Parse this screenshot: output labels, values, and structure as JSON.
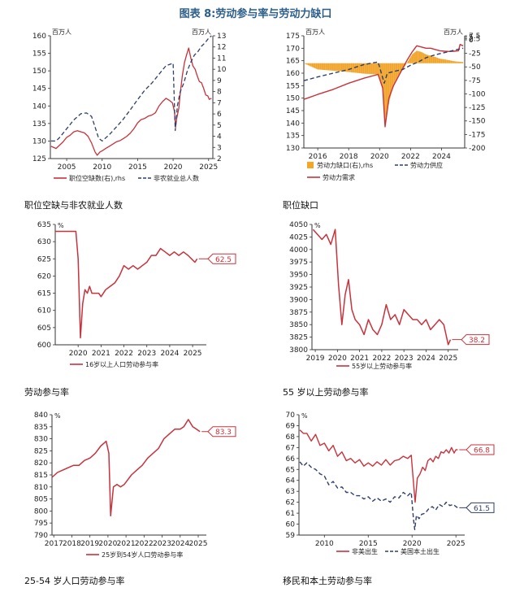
{
  "page": {
    "title": "图表 8:劳动参与率与劳动力缺口"
  },
  "chart_data": [
    {
      "id": "c1",
      "type": "line",
      "unit_left": "百万人",
      "unit_right": "百万人",
      "ylim": [
        125,
        160
      ],
      "yticks": [
        125,
        130,
        135,
        140,
        145,
        150,
        155,
        160
      ],
      "y2lim": [
        2,
        13
      ],
      "y2ticks": [
        2,
        3,
        4,
        5,
        6,
        7,
        8,
        9,
        10,
        11,
        12,
        13
      ],
      "xlim": [
        2002.7,
        2025.6
      ],
      "xticks": [
        2005,
        2010,
        2015,
        2020,
        2025
      ],
      "series": [
        {
          "name": "职位空缺数(右),rhs",
          "color": "#c8323c",
          "axis": "right",
          "style": "solid",
          "x": [
            2002.8,
            2003.5,
            2004,
            2004.5,
            2005,
            2005.5,
            2006,
            2006.5,
            2007,
            2007.5,
            2008,
            2008.5,
            2009,
            2009.3,
            2009.7,
            2010,
            2010.5,
            2011,
            2011.5,
            2012,
            2012.5,
            2013,
            2013.5,
            2014,
            2014.5,
            2015,
            2015.5,
            2016,
            2016.5,
            2017,
            2017.5,
            2018,
            2018.5,
            2019,
            2019.5,
            2019.9,
            2020.2,
            2020.35,
            2020.5,
            2020.8,
            2021,
            2021.3,
            2021.6,
            2021.9,
            2022.2,
            2022.5,
            2022.8,
            2023.1,
            2023.4,
            2023.7,
            2024,
            2024.3,
            2024.6,
            2024.9,
            2025.1,
            2025.4
          ],
          "y": [
            3.1,
            2.9,
            3.2,
            3.5,
            3.9,
            4.1,
            4.4,
            4.5,
            4.4,
            4.3,
            4.0,
            3.4,
            2.6,
            2.3,
            2.6,
            2.7,
            2.9,
            3.1,
            3.3,
            3.5,
            3.6,
            3.8,
            4.0,
            4.3,
            4.7,
            5.2,
            5.5,
            5.6,
            5.8,
            5.9,
            6.1,
            6.7,
            7.1,
            7.4,
            7.2,
            7.0,
            6.2,
            4.8,
            5.6,
            6.5,
            7.8,
            9.4,
            10.6,
            11.3,
            11.9,
            11.0,
            10.3,
            10.0,
            9.4,
            8.9,
            8.8,
            8.3,
            7.7,
            7.6,
            7.3,
            7.4
          ]
        },
        {
          "name": "非农就业总人数",
          "color": "#2e3f6b",
          "axis": "left",
          "style": "dashed",
          "x": [
            2002.8,
            2003.5,
            2004,
            2005,
            2006,
            2007,
            2007.8,
            2008.5,
            2009,
            2009.5,
            2010,
            2011,
            2012,
            2013,
            2014,
            2015,
            2016,
            2017,
            2018,
            2019,
            2020.0,
            2020.3,
            2020.4,
            2020.6,
            2021,
            2021.5,
            2022,
            2022.5,
            2023,
            2023.5,
            2024,
            2024.5,
            2025,
            2025.4
          ],
          "y": [
            130,
            130,
            131,
            133.5,
            136,
            137.8,
            138,
            137,
            134,
            130.8,
            130,
            131.8,
            134,
            136.3,
            139,
            141.8,
            144.5,
            146.5,
            149,
            151.5,
            152.2,
            133,
            135.2,
            140,
            144,
            146.5,
            150,
            152.5,
            154.5,
            155.5,
            157,
            158,
            159.3,
            160
          ]
        }
      ]
    },
    {
      "id": "c2",
      "type": "bar+line",
      "unit_left": "百万人",
      "unit_right": "百万人",
      "ylim": [
        130,
        175
      ],
      "yticks": [
        130,
        135,
        140,
        145,
        150,
        155,
        160,
        165,
        170,
        175
      ],
      "y2lim": [
        -200,
        7.5
      ],
      "y2ticks": [
        -200,
        -175,
        -150,
        -125,
        -100,
        -75,
        -50,
        -25,
        0,
        2.5,
        5,
        7.5
      ],
      "xlim": [
        2015.1,
        2025.5
      ],
      "xticks": [
        2016,
        2018,
        2020,
        2022,
        2024
      ],
      "gap": {
        "name": "劳动力缺口(右),rhs",
        "color": "#f5a623",
        "baseline": 164,
        "x": [
          2015.1,
          2016,
          2017,
          2018,
          2019,
          2019.9,
          2020.2,
          2020.35,
          2020.6,
          2020.9,
          2021.2,
          2021.5,
          2021.8,
          2022.1,
          2022.4,
          2022.7,
          2023,
          2023.3,
          2023.6,
          2023.9,
          2024.2,
          2024.5,
          2024.8,
          2025.1,
          2025.4
        ],
        "y": [
          164,
          161.5,
          161,
          160.5,
          159.8,
          159.5,
          154,
          139,
          148,
          155.5,
          159,
          161.5,
          164.5,
          167.5,
          169,
          168.5,
          167.5,
          167,
          166.5,
          165.8,
          165.5,
          165.2,
          164.8,
          164.6,
          164.5
        ]
      },
      "series": [
        {
          "name": "劳动力需求",
          "color": "#c8323c",
          "style": "solid",
          "x": [
            2015.1,
            2016,
            2017,
            2018,
            2019,
            2019.9,
            2020.2,
            2020.35,
            2020.6,
            2020.9,
            2021.2,
            2021.5,
            2021.8,
            2022.1,
            2022.4,
            2022.7,
            2023,
            2023.3,
            2023.6,
            2023.9,
            2024.2,
            2024.5,
            2024.8,
            2025.1,
            2025.2,
            2025.4
          ],
          "y": [
            149.5,
            151.5,
            153.5,
            156,
            158,
            159.5,
            154,
            138.5,
            150,
            155,
            158.5,
            162,
            165.5,
            168.5,
            171,
            170.5,
            170,
            170,
            169.5,
            169,
            168.8,
            168.7,
            168.8,
            169,
            171.5,
            171
          ]
        },
        {
          "name": "劳动力供应",
          "color": "#2e3f6b",
          "style": "dashed",
          "x": [
            2015.1,
            2016,
            2017,
            2018,
            2019,
            2019.9,
            2020.3,
            2020.5,
            2021,
            2021.5,
            2022,
            2022.5,
            2023,
            2023.5,
            2024,
            2024.5,
            2025,
            2025.4
          ],
          "y": [
            157,
            158.5,
            160,
            161.5,
            163.5,
            164.5,
            156,
            160,
            160.8,
            161.5,
            163.2,
            164.5,
            166.2,
            167.2,
            168,
            168.7,
            169.5,
            170
          ]
        }
      ]
    },
    {
      "id": "c3",
      "type": "line",
      "unit_left": "%",
      "ylim": [
        60.0,
        63.5
      ],
      "yticks": [
        60.0,
        60.5,
        61.0,
        61.5,
        62.0,
        62.5,
        63.0,
        63.5
      ],
      "tick_labels": [
        "600",
        "605",
        "610",
        "615",
        "620",
        "625",
        "630",
        "635"
      ],
      "xlim": [
        2019.0,
        2025.6
      ],
      "xticks": [
        2020,
        2021,
        2022,
        2023,
        2024,
        2025
      ],
      "last_value_label": "62.5",
      "series": [
        {
          "name": "16岁以上人口劳动参与率",
          "color": "#c8323c",
          "x": [
            2019.0,
            2019.5,
            2019.9,
            2020.0,
            2020.1,
            2020.2,
            2020.3,
            2020.4,
            2020.5,
            2020.6,
            2020.7,
            2020.8,
            2020.9,
            2021.0,
            2021.2,
            2021.4,
            2021.6,
            2021.8,
            2022.0,
            2022.2,
            2022.4,
            2022.6,
            2022.8,
            2023.0,
            2023.2,
            2023.4,
            2023.6,
            2023.8,
            2024.0,
            2024.2,
            2024.4,
            2024.6,
            2024.8,
            2024.95,
            2025.1,
            2025.2
          ],
          "y": [
            63.3,
            63.3,
            63.3,
            62.5,
            60.2,
            61.2,
            61.6,
            61.5,
            61.7,
            61.5,
            61.5,
            61.5,
            61.5,
            61.4,
            61.6,
            61.7,
            61.8,
            62.0,
            62.3,
            62.2,
            62.3,
            62.2,
            62.3,
            62.4,
            62.6,
            62.6,
            62.8,
            62.7,
            62.6,
            62.7,
            62.6,
            62.7,
            62.6,
            62.5,
            62.4,
            62.5
          ]
        }
      ]
    },
    {
      "id": "c4",
      "type": "line",
      "unit_left": "%",
      "ylim": [
        38.0,
        40.5
      ],
      "yticks": [
        38.0,
        38.25,
        38.5,
        38.75,
        39.0,
        39.25,
        39.5,
        39.75,
        40.0,
        40.25,
        40.5
      ],
      "tick_labels": [
        "3800",
        "3825",
        "3850",
        "3875",
        "3900",
        "3925",
        "3950",
        "3975",
        "4000",
        "4025",
        "4050"
      ],
      "xlim": [
        2018.85,
        2025.45
      ],
      "xticks": [
        2019,
        2020,
        2021,
        2022,
        2023,
        2024,
        2025
      ],
      "last_value_label": "38.2",
      "series": [
        {
          "name": "55岁以上劳动参与率",
          "color": "#c8323c",
          "x": [
            2018.9,
            2019.1,
            2019.3,
            2019.5,
            2019.7,
            2019.9,
            2020.05,
            2020.2,
            2020.35,
            2020.5,
            2020.65,
            2020.8,
            2021.0,
            2021.2,
            2021.4,
            2021.6,
            2021.8,
            2022.0,
            2022.2,
            2022.4,
            2022.6,
            2022.8,
            2023.0,
            2023.2,
            2023.4,
            2023.6,
            2023.8,
            2024.0,
            2024.2,
            2024.4,
            2024.6,
            2024.8,
            2024.9,
            2025.0,
            2025.1
          ],
          "y": [
            40.4,
            40.3,
            40.2,
            40.3,
            40.1,
            40.4,
            39.3,
            38.5,
            39.1,
            39.4,
            38.8,
            38.6,
            38.5,
            38.3,
            38.6,
            38.4,
            38.3,
            38.5,
            38.9,
            38.6,
            38.7,
            38.5,
            38.8,
            38.7,
            38.6,
            38.6,
            38.5,
            38.6,
            38.4,
            38.5,
            38.6,
            38.5,
            38.3,
            38.1,
            38.2
          ]
        }
      ]
    },
    {
      "id": "c5",
      "type": "line",
      "unit_left": "%",
      "ylim": [
        79.0,
        84.0
      ],
      "yticks": [
        79.0,
        79.5,
        80.0,
        80.5,
        81.0,
        81.5,
        82.0,
        82.5,
        83.0,
        83.5,
        84.0
      ],
      "tick_labels": [
        "790",
        "795",
        "800",
        "805",
        "810",
        "815",
        "820",
        "825",
        "830",
        "835",
        "840"
      ],
      "xlim": [
        2016.9,
        2025.45
      ],
      "xticks": [
        2017,
        2018,
        2019,
        2020,
        2021,
        2022,
        2023,
        2024,
        2025
      ],
      "last_value_label": "83.3",
      "series": [
        {
          "name": "25岁到54岁人口劳动参与率",
          "color": "#c8323c",
          "x": [
            2016.9,
            2017.2,
            2017.5,
            2017.8,
            2018.1,
            2018.4,
            2018.7,
            2019.0,
            2019.3,
            2019.6,
            2019.9,
            2020.05,
            2020.15,
            2020.3,
            2020.5,
            2020.7,
            2020.9,
            2021.1,
            2021.3,
            2021.6,
            2021.9,
            2022.2,
            2022.5,
            2022.8,
            2023.1,
            2023.4,
            2023.7,
            2024.0,
            2024.2,
            2024.45,
            2024.7,
            2024.9,
            2025.1
          ],
          "y": [
            81.4,
            81.6,
            81.7,
            81.8,
            81.9,
            81.9,
            82.1,
            82.2,
            82.4,
            82.7,
            82.9,
            82.4,
            79.8,
            81.0,
            81.1,
            81.0,
            81.1,
            81.3,
            81.5,
            81.7,
            81.9,
            82.2,
            82.4,
            82.6,
            83.0,
            83.2,
            83.4,
            83.4,
            83.5,
            83.8,
            83.5,
            83.4,
            83.3
          ]
        }
      ]
    },
    {
      "id": "c6",
      "type": "line",
      "unit_left": "%",
      "ylim": [
        59,
        70
      ],
      "yticks": [
        59,
        60,
        61,
        62,
        63,
        64,
        65,
        66,
        67,
        68,
        69,
        70
      ],
      "xlim": [
        2007.1,
        2026.0
      ],
      "xticks": [
        2010,
        2015,
        2020,
        2025
      ],
      "series": [
        {
          "name": "非美出生",
          "color": "#c8323c",
          "style": "solid",
          "last_value_label": "66.8",
          "x": [
            2007.2,
            2007.6,
            2008,
            2008.5,
            2009,
            2009.5,
            2010,
            2010.5,
            2011,
            2011.5,
            2012,
            2012.5,
            2013,
            2013.5,
            2014,
            2014.5,
            2015,
            2015.5,
            2016,
            2016.5,
            2017,
            2017.5,
            2018,
            2018.5,
            2019,
            2019.5,
            2019.9,
            2020.2,
            2020.35,
            2020.6,
            2020.9,
            2021.2,
            2021.5,
            2021.8,
            2022.1,
            2022.4,
            2022.7,
            2023.0,
            2023.3,
            2023.6,
            2023.9,
            2024.2,
            2024.5,
            2024.8,
            2025.0,
            2025.2
          ],
          "y": [
            68.6,
            68.3,
            68.3,
            67.6,
            68.2,
            67.2,
            67.4,
            66.7,
            67.2,
            66.2,
            66.6,
            65.8,
            66.0,
            65.6,
            65.9,
            65.3,
            65.6,
            65.3,
            65.7,
            65.4,
            65.9,
            65.4,
            65.8,
            65.9,
            66.2,
            66.0,
            66.3,
            63.4,
            62.0,
            64.2,
            64.6,
            65.2,
            64.9,
            65.8,
            66.0,
            65.7,
            66.2,
            66.0,
            66.6,
            66.5,
            66.8,
            66.5,
            67.0,
            66.5,
            66.8,
            66.8
          ]
        },
        {
          "name": "美国本土出生",
          "color": "#2e3f6b",
          "style": "dashed",
          "last_value_label": "61.5",
          "x": [
            2007.2,
            2007.6,
            2008,
            2008.5,
            2009,
            2009.5,
            2010,
            2010.5,
            2011,
            2011.5,
            2012,
            2012.5,
            2013,
            2013.5,
            2014,
            2014.5,
            2015,
            2015.5,
            2016,
            2016.5,
            2017,
            2017.5,
            2018,
            2018.5,
            2019,
            2019.5,
            2019.9,
            2020.15,
            2020.3,
            2020.5,
            2020.8,
            2021.1,
            2021.5,
            2021.9,
            2022.3,
            2022.7,
            2023.1,
            2023.5,
            2023.9,
            2024.3,
            2024.7,
            2025.0,
            2025.2
          ],
          "y": [
            65.7,
            65.3,
            65.6,
            65.2,
            65.0,
            64.6,
            64.4,
            63.6,
            63.9,
            63.3,
            63.4,
            62.9,
            62.9,
            62.6,
            62.6,
            62.3,
            62.5,
            62.1,
            62.4,
            62.1,
            62.3,
            62.0,
            62.5,
            62.4,
            62.9,
            62.6,
            62.9,
            60.5,
            59.5,
            60.8,
            60.5,
            60.9,
            61.0,
            61.4,
            61.6,
            61.3,
            61.8,
            61.6,
            62.0,
            61.7,
            61.8,
            61.6,
            61.5
          ]
        }
      ]
    }
  ],
  "panels": [
    {
      "title": "职位空缺与非农就业人数",
      "legend": [
        "职位空缺数(右),rhs",
        "非农就业总人数"
      ]
    },
    {
      "title": "职位缺口",
      "legend": [
        "劳动力缺口(右),rhs",
        "劳动力供应",
        "劳动力需求"
      ]
    },
    {
      "title": "劳动参与率",
      "legend": [
        "16岁以上人口劳动参与率"
      ]
    },
    {
      "title": "55 岁以上劳动参与率",
      "legend": [
        "55岁以上劳动参与率"
      ]
    },
    {
      "title": "25-54 岁人口劳动参与率",
      "legend": [
        "25岁到54岁人口劳动参与率"
      ]
    },
    {
      "title": "移民和本土劳动参与率",
      "legend": [
        "非美出生",
        "美国本土出生"
      ]
    }
  ]
}
